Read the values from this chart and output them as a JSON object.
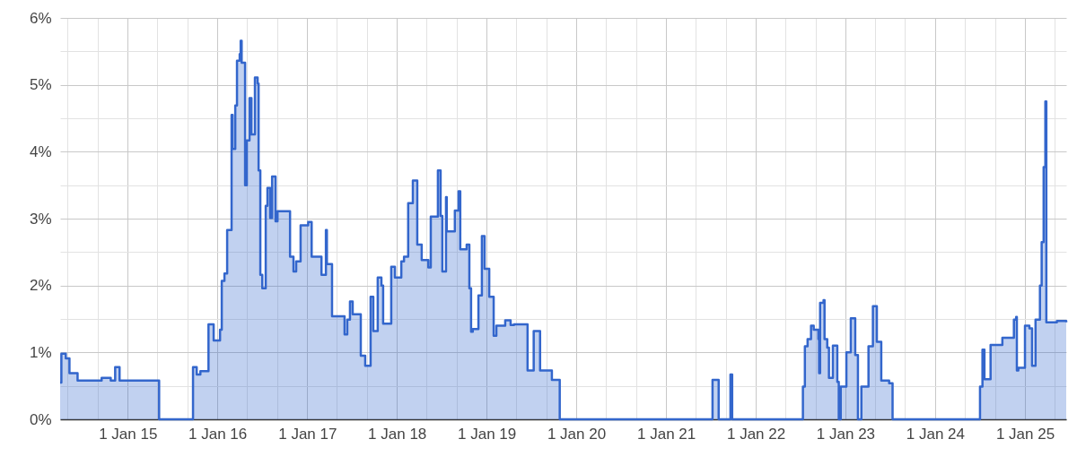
{
  "chart_data": {
    "type": "step",
    "x": [
      "2014-04-01",
      "2014-04-06",
      "2014-04-24",
      "2014-05-09",
      "2014-06-11",
      "2014-09-17",
      "2014-10-24",
      "2014-11-11",
      "2014-11-29",
      "2015-05-09",
      "2015-09-24",
      "2015-10-09",
      "2015-10-24",
      "2015-11-26",
      "2015-12-17",
      "2016-01-12",
      "2016-01-19",
      "2016-01-30",
      "2016-02-10",
      "2016-02-28",
      "2016-03-03",
      "2016-03-14",
      "2016-03-21",
      "2016-04-01",
      "2016-04-05",
      "2016-04-09",
      "2016-04-23",
      "2016-04-30",
      "2016-05-11",
      "2016-05-19",
      "2016-06-02",
      "2016-06-13",
      "2016-06-17",
      "2016-06-24",
      "2016-07-02",
      "2016-07-16",
      "2016-07-23",
      "2016-08-03",
      "2016-08-11",
      "2016-08-25",
      "2016-09-02",
      "2016-10-23",
      "2016-11-06",
      "2016-11-17",
      "2016-12-05",
      "2017-01-05",
      "2017-01-19",
      "2017-02-28",
      "2017-03-18",
      "2017-03-22",
      "2017-04-12",
      "2017-06-02",
      "2017-06-13",
      "2017-06-24",
      "2017-07-05",
      "2017-08-07",
      "2017-08-25",
      "2017-09-16",
      "2017-09-27",
      "2017-10-15",
      "2017-10-30",
      "2017-11-06",
      "2017-12-09",
      "2017-12-24",
      "2018-01-19",
      "2018-01-30",
      "2018-02-16",
      "2018-03-07",
      "2018-03-25",
      "2018-04-12",
      "2018-05-09",
      "2018-05-19",
      "2018-06-17",
      "2018-06-28",
      "2018-07-05",
      "2018-07-20",
      "2018-07-23",
      "2018-08-25",
      "2018-09-09",
      "2018-09-16",
      "2018-10-12",
      "2018-10-23",
      "2018-10-30",
      "2018-11-06",
      "2018-11-29",
      "2018-12-13",
      "2018-12-24",
      "2019-01-12",
      "2019-01-30",
      "2019-02-10",
      "2019-03-18",
      "2019-04-09",
      "2019-04-23",
      "2019-06-17",
      "2019-07-12",
      "2019-08-07",
      "2019-09-24",
      "2019-10-26",
      "2021-07-09",
      "2021-08-03",
      "2021-09-20",
      "2021-09-27",
      "2022-07-12",
      "2022-07-20",
      "2022-07-31",
      "2022-08-14",
      "2022-08-25",
      "2022-09-13",
      "2022-09-16",
      "2022-09-20",
      "2022-10-04",
      "2022-10-08",
      "2022-10-19",
      "2022-10-26",
      "2022-11-11",
      "2022-11-29",
      "2022-12-05",
      "2022-12-13",
      "2023-01-05",
      "2023-01-23",
      "2023-02-10",
      "2023-02-21",
      "2023-03-07",
      "2023-04-05",
      "2023-04-23",
      "2023-05-09",
      "2023-05-27",
      "2023-06-28",
      "2023-07-12",
      "2024-07-02",
      "2024-07-12",
      "2024-07-20",
      "2024-08-14",
      "2024-10-01",
      "2024-11-17",
      "2024-11-26",
      "2024-11-29",
      "2024-12-05",
      "2025-01-01",
      "2025-01-19",
      "2025-01-30",
      "2025-02-13",
      "2025-03-03",
      "2025-03-10",
      "2025-03-18",
      "2025-03-25",
      "2025-03-29",
      "2025-05-11",
      "2025-06-18"
    ],
    "series": [
      {
        "color": "#3366cc",
        "values": [
          0.55,
          0.98,
          0.91,
          0.69,
          0.58,
          0.62,
          0.58,
          0.78,
          0.58,
          0,
          0.78,
          0.67,
          0.72,
          1.42,
          1.18,
          1.34,
          2.07,
          2.18,
          2.83,
          4.55,
          4.04,
          4.69,
          5.36,
          5.46,
          5.66,
          5.33,
          3.5,
          4.17,
          4.8,
          4.26,
          5.11,
          5.02,
          3.72,
          2.16,
          1.96,
          3.19,
          3.46,
          3.01,
          3.63,
          2.96,
          3.11,
          2.43,
          2.21,
          2.36,
          2.9,
          2.95,
          2.43,
          2.16,
          2.83,
          2.32,
          1.54,
          1.27,
          1.49,
          1.76,
          1.57,
          0.95,
          0.8,
          1.83,
          1.32,
          2.12,
          2.0,
          1.43,
          2.28,
          2.12,
          2.36,
          2.43,
          3.23,
          3.57,
          2.61,
          2.38,
          2.27,
          3.03,
          3.72,
          3.04,
          2.21,
          3.32,
          2.81,
          3.12,
          3.41,
          2.54,
          2.61,
          1.96,
          1.31,
          1.35,
          1.85,
          2.74,
          2.25,
          1.83,
          1.25,
          1.4,
          1.48,
          1.41,
          1.42,
          0.73,
          1.32,
          0.73,
          0.59,
          0,
          0.59,
          0,
          0.67,
          0,
          0.49,
          1.09,
          1.2,
          1.4,
          1.34,
          1.2,
          0.69,
          1.74,
          1.78,
          1.2,
          1.07,
          0.62,
          1.1,
          0.56,
          0,
          0.49,
          1.0,
          1.51,
          0.96,
          0,
          0.49,
          1.09,
          1.69,
          1.16,
          0.58,
          0.54,
          0,
          0.49,
          1.04,
          0.6,
          1.11,
          1.22,
          1.49,
          1.53,
          0.73,
          0.77,
          1.4,
          1.36,
          0.8,
          1.49,
          2.0,
          2.65,
          3.77,
          4.75,
          1.45,
          1.47,
          1.45
        ]
      }
    ],
    "xlim": [
      "2014-04-01",
      "2025-06-18"
    ],
    "ylim": [
      0,
      6
    ],
    "xticks": [
      {
        "value": "2014-05-01",
        "label": null
      },
      {
        "value": "2014-09-01",
        "label": null
      },
      {
        "value": "2015-01-01",
        "label": "1 Jan 15"
      },
      {
        "value": "2015-05-01",
        "label": null
      },
      {
        "value": "2015-09-01",
        "label": null
      },
      {
        "value": "2016-01-01",
        "label": "1 Jan 16"
      },
      {
        "value": "2016-05-01",
        "label": null
      },
      {
        "value": "2016-09-01",
        "label": null
      },
      {
        "value": "2017-01-01",
        "label": "1 Jan 17"
      },
      {
        "value": "2017-05-01",
        "label": null
      },
      {
        "value": "2017-09-01",
        "label": null
      },
      {
        "value": "2018-01-01",
        "label": "1 Jan 18"
      },
      {
        "value": "2018-05-01",
        "label": null
      },
      {
        "value": "2018-09-01",
        "label": null
      },
      {
        "value": "2019-01-01",
        "label": "1 Jan 19"
      },
      {
        "value": "2019-05-01",
        "label": null
      },
      {
        "value": "2019-09-01",
        "label": null
      },
      {
        "value": "2020-01-01",
        "label": "1 Jan 20"
      },
      {
        "value": "2020-05-01",
        "label": null
      },
      {
        "value": "2020-09-01",
        "label": null
      },
      {
        "value": "2021-01-01",
        "label": "1 Jan 21"
      },
      {
        "value": "2021-05-01",
        "label": null
      },
      {
        "value": "2021-09-01",
        "label": null
      },
      {
        "value": "2022-01-01",
        "label": "1 Jan 22"
      },
      {
        "value": "2022-05-01",
        "label": null
      },
      {
        "value": "2022-09-01",
        "label": null
      },
      {
        "value": "2023-01-01",
        "label": "1 Jan 23"
      },
      {
        "value": "2023-05-01",
        "label": null
      },
      {
        "value": "2023-09-01",
        "label": null
      },
      {
        "value": "2024-01-01",
        "label": "1 Jan 24"
      },
      {
        "value": "2024-05-01",
        "label": null
      },
      {
        "value": "2024-09-01",
        "label": null
      },
      {
        "value": "2025-01-01",
        "label": "1 Jan 25"
      },
      {
        "value": "2025-05-01",
        "label": null
      }
    ],
    "yticks": [
      {
        "value": 0,
        "label": "0%"
      },
      {
        "value": 0.5,
        "label": null
      },
      {
        "value": 1,
        "label": "1%"
      },
      {
        "value": 1.5,
        "label": null
      },
      {
        "value": 2,
        "label": "2%"
      },
      {
        "value": 2.5,
        "label": null
      },
      {
        "value": 3,
        "label": "3%"
      },
      {
        "value": 3.5,
        "label": null
      },
      {
        "value": 4,
        "label": "4%"
      },
      {
        "value": 4.5,
        "label": null
      },
      {
        "value": 5,
        "label": "5%"
      },
      {
        "value": 5.5,
        "label": null
      },
      {
        "value": 6,
        "label": "6%"
      }
    ],
    "grid": true
  }
}
